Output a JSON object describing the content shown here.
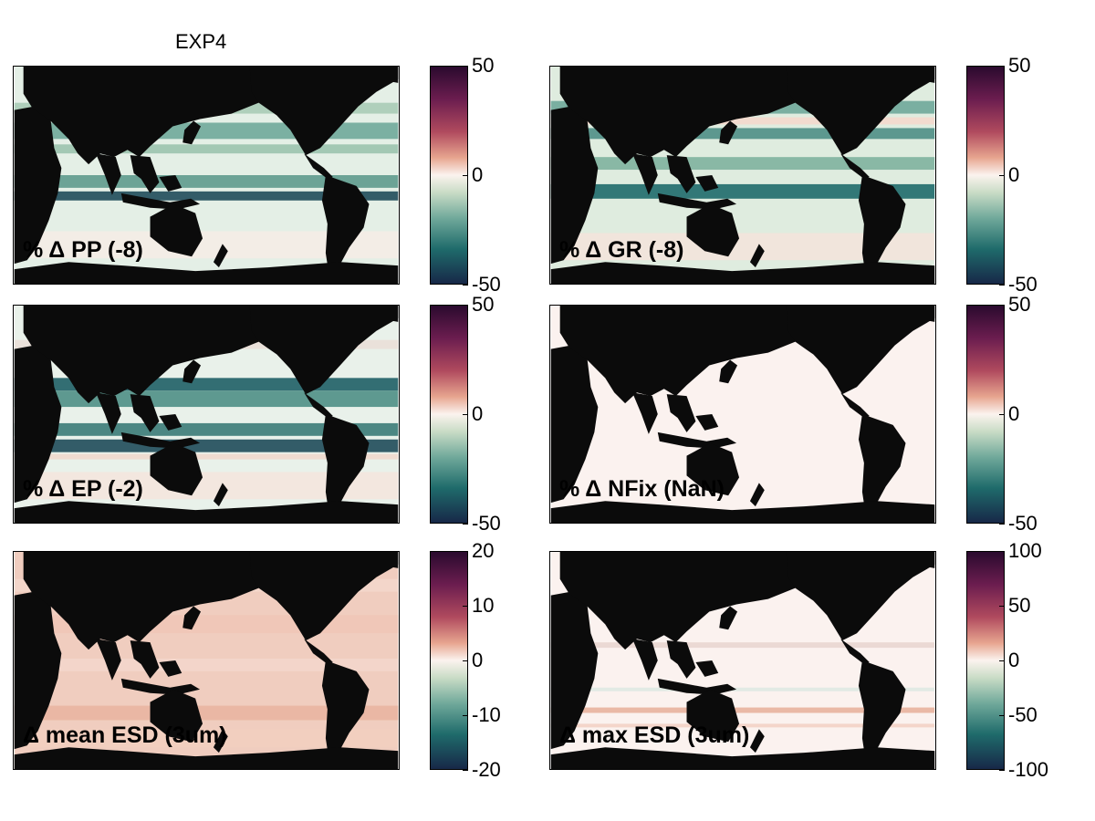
{
  "title": "EXP4",
  "panels": [
    {
      "label": "% Δ PP (-8)",
      "pattern": "pp",
      "cbar_ticks": [
        "50",
        "0",
        "-50"
      ]
    },
    {
      "label": "% Δ GR (-8)",
      "pattern": "gr",
      "cbar_ticks": [
        "50",
        "0",
        "-50"
      ]
    },
    {
      "label": "% Δ EP (-2)",
      "pattern": "ep",
      "cbar_ticks": [
        "50",
        "0",
        "-50"
      ]
    },
    {
      "label": "% Δ NFix (NaN)",
      "pattern": "nfix",
      "cbar_ticks": [
        "50",
        "0",
        "-50"
      ]
    },
    {
      "label": "Δ mean ESD (3um)",
      "pattern": "mean",
      "cbar_ticks": [
        "20",
        "10",
        "0",
        "-10",
        "-20"
      ]
    },
    {
      "label": "Δ max ESD (3um)",
      "pattern": "max",
      "cbar_ticks": [
        "100",
        "50",
        "0",
        "-50",
        "-100"
      ]
    }
  ],
  "colormap": {
    "top": "#2a0a2e",
    "mid": "#fbf3ee",
    "bottom": "#172848",
    "land": "#0b0b0b"
  }
}
